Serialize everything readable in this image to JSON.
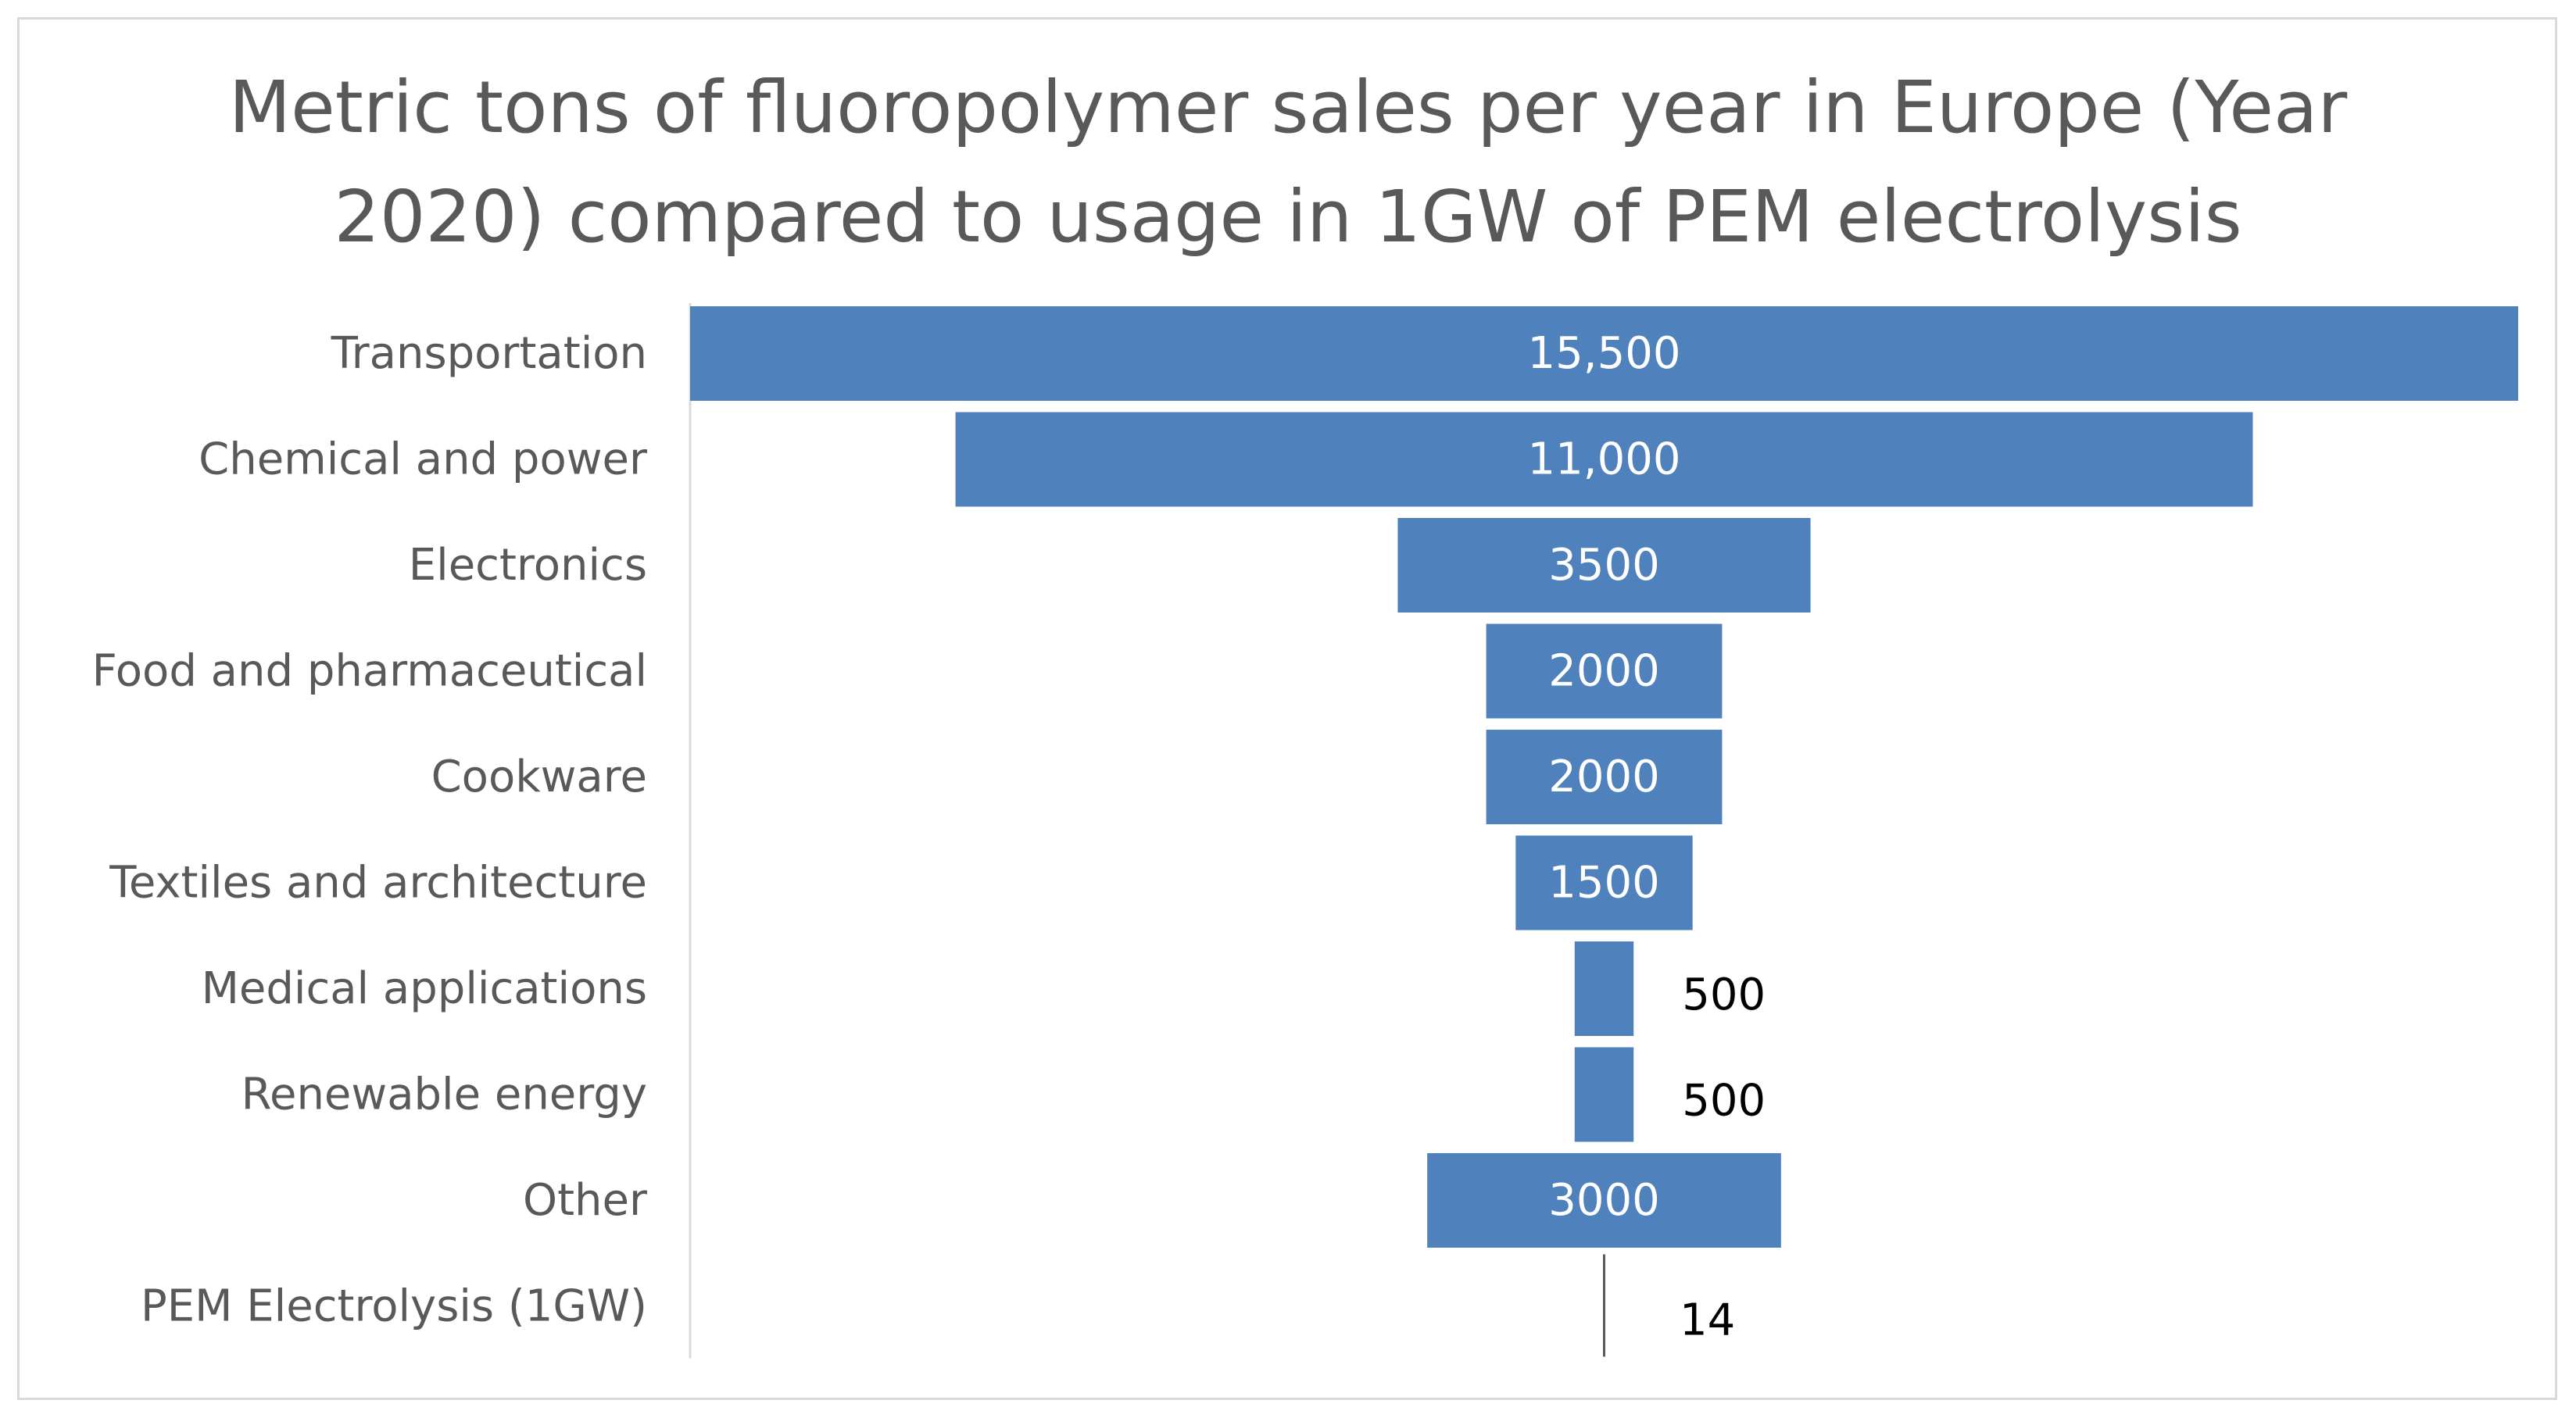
{
  "chart_data": {
    "type": "bar",
    "orientation": "horizontal",
    "style": "funnel (bars centered)",
    "title_lines": [
      "Metric tons of fluoropolymer  sales per year in Europe (Year",
      "2020) compared to usage in 1GW of PEM electrolysis"
    ],
    "xlabel": "",
    "ylabel": "",
    "categories": [
      "Transportation",
      "Chemical and power",
      "Electronics",
      "Food and pharmaceutical",
      "Cookware",
      "Textiles and architecture",
      "Medical applications",
      "Renewable energy",
      "Other",
      "PEM Electrolysis (1GW)"
    ],
    "values": [
      15500,
      11000,
      3500,
      2000,
      2000,
      1500,
      500,
      500,
      3000,
      14
    ],
    "value_labels": [
      "15,500",
      "11,000",
      "3500",
      "2000",
      "2000",
      "1500",
      "500",
      "500",
      "3000",
      "14"
    ],
    "xlim": [
      0,
      15500
    ],
    "grid": false,
    "legend": "none",
    "colors": {
      "bar": "#4f81bd",
      "label_inside": "#ffffff",
      "label_outside": "#000000",
      "category_text": "#595959",
      "title_text": "#595959",
      "axis_line": "#d9d9d9",
      "frame": "#d9d9d9"
    }
  }
}
